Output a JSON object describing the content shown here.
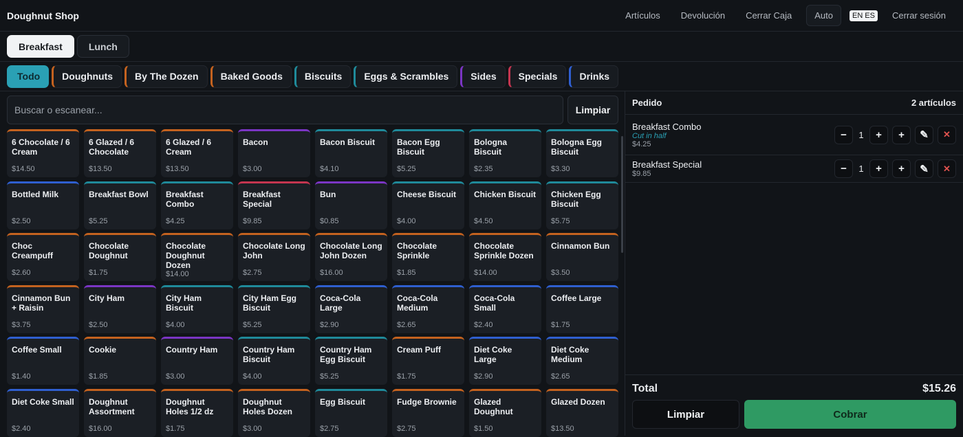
{
  "header": {
    "brand": "Doughnut Shop",
    "nav": [
      "Artículos",
      "Devolución",
      "Cerrar Caja"
    ],
    "auto": "Auto",
    "lang": [
      "EN",
      "ES"
    ],
    "logout": "Cerrar sesión"
  },
  "menus": [
    {
      "label": "Breakfast",
      "active": true
    },
    {
      "label": "Lunch",
      "active": false
    }
  ],
  "categories": [
    {
      "label": "Todo",
      "color": "#2aa0b4",
      "active": true
    },
    {
      "label": "Doughnuts",
      "color": "#c4621f",
      "active": false
    },
    {
      "label": "By The Dozen",
      "color": "#c4621f",
      "active": false
    },
    {
      "label": "Baked Goods",
      "color": "#c4621f",
      "active": false
    },
    {
      "label": "Biscuits",
      "color": "#1f8a9a",
      "active": false
    },
    {
      "label": "Eggs & Scrambles",
      "color": "#1f8a9a",
      "active": false
    },
    {
      "label": "Sides",
      "color": "#7b35c4",
      "active": false
    },
    {
      "label": "Specials",
      "color": "#c43550",
      "active": false
    },
    {
      "label": "Drinks",
      "color": "#2f5fd0",
      "active": false
    }
  ],
  "search": {
    "placeholder": "Buscar o escanear...",
    "clear_label": "Limpiar"
  },
  "products": [
    {
      "name": "6 Chocolate / 6 Cream",
      "price": "$14.50",
      "color": "#c4621f"
    },
    {
      "name": "6 Glazed / 6 Chocolate",
      "price": "$13.50",
      "color": "#c4621f"
    },
    {
      "name": "6 Glazed / 6 Cream",
      "price": "$13.50",
      "color": "#c4621f"
    },
    {
      "name": "Bacon",
      "price": "$3.00",
      "color": "#7b35c4"
    },
    {
      "name": "Bacon Biscuit",
      "price": "$4.10",
      "color": "#1f8a9a"
    },
    {
      "name": "Bacon Egg Biscuit",
      "price": "$5.25",
      "color": "#1f8a9a"
    },
    {
      "name": "Bologna Biscuit",
      "price": "$2.35",
      "color": "#1f8a9a"
    },
    {
      "name": "Bologna Egg Biscuit",
      "price": "$3.30",
      "color": "#1f8a9a"
    },
    {
      "name": "Bottled Milk",
      "price": "$2.50",
      "color": "#2f5fd0"
    },
    {
      "name": "Breakfast Bowl",
      "price": "$5.25",
      "color": "#1f8a9a"
    },
    {
      "name": "Breakfast Combo",
      "price": "$4.25",
      "color": "#1f8a9a"
    },
    {
      "name": "Breakfast Special",
      "price": "$9.85",
      "color": "#c43550"
    },
    {
      "name": "Bun",
      "price": "$0.85",
      "color": "#7b35c4"
    },
    {
      "name": "Cheese Biscuit",
      "price": "$4.00",
      "color": "#1f8a9a"
    },
    {
      "name": "Chicken Biscuit",
      "price": "$4.50",
      "color": "#1f8a9a"
    },
    {
      "name": "Chicken Egg Biscuit",
      "price": "$5.75",
      "color": "#1f8a9a"
    },
    {
      "name": "Choc Creampuff",
      "price": "$2.60",
      "color": "#c4621f"
    },
    {
      "name": "Chocolate Doughnut",
      "price": "$1.75",
      "color": "#c4621f"
    },
    {
      "name": "Chocolate Doughnut Dozen",
      "price": "$14.00",
      "color": "#c4621f"
    },
    {
      "name": "Chocolate Long John",
      "price": "$2.75",
      "color": "#c4621f"
    },
    {
      "name": "Chocolate Long John Dozen",
      "price": "$16.00",
      "color": "#c4621f"
    },
    {
      "name": "Chocolate Sprinkle",
      "price": "$1.85",
      "color": "#c4621f"
    },
    {
      "name": "Chocolate Sprinkle Dozen",
      "price": "$14.00",
      "color": "#c4621f"
    },
    {
      "name": "Cinnamon Bun",
      "price": "$3.50",
      "color": "#c4621f"
    },
    {
      "name": "Cinnamon Bun + Raisin",
      "price": "$3.75",
      "color": "#c4621f"
    },
    {
      "name": "City Ham",
      "price": "$2.50",
      "color": "#7b35c4"
    },
    {
      "name": "City Ham Biscuit",
      "price": "$4.00",
      "color": "#1f8a9a"
    },
    {
      "name": "City Ham Egg Biscuit",
      "price": "$5.25",
      "color": "#1f8a9a"
    },
    {
      "name": "Coca-Cola Large",
      "price": "$2.90",
      "color": "#2f5fd0"
    },
    {
      "name": "Coca-Cola Medium",
      "price": "$2.65",
      "color": "#2f5fd0"
    },
    {
      "name": "Coca-Cola Small",
      "price": "$2.40",
      "color": "#2f5fd0"
    },
    {
      "name": "Coffee Large",
      "price": "$1.75",
      "color": "#2f5fd0"
    },
    {
      "name": "Coffee Small",
      "price": "$1.40",
      "color": "#2f5fd0"
    },
    {
      "name": "Cookie",
      "price": "$1.85",
      "color": "#c4621f"
    },
    {
      "name": "Country Ham",
      "price": "$3.00",
      "color": "#7b35c4"
    },
    {
      "name": "Country Ham Biscuit",
      "price": "$4.00",
      "color": "#1f8a9a"
    },
    {
      "name": "Country Ham Egg Biscuit",
      "price": "$5.25",
      "color": "#1f8a9a"
    },
    {
      "name": "Cream Puff",
      "price": "$1.75",
      "color": "#c4621f"
    },
    {
      "name": "Diet Coke Large",
      "price": "$2.90",
      "color": "#2f5fd0"
    },
    {
      "name": "Diet Coke Medium",
      "price": "$2.65",
      "color": "#2f5fd0"
    },
    {
      "name": "Diet Coke Small",
      "price": "$2.40",
      "color": "#2f5fd0"
    },
    {
      "name": "Doughnut Assortment",
      "price": "$16.00",
      "color": "#c4621f"
    },
    {
      "name": "Doughnut Holes 1/2 dz",
      "price": "$1.75",
      "color": "#c4621f"
    },
    {
      "name": "Doughnut Holes Dozen",
      "price": "$3.00",
      "color": "#c4621f"
    },
    {
      "name": "Egg Biscuit",
      "price": "$2.75",
      "color": "#1f8a9a"
    },
    {
      "name": "Fudge Brownie",
      "price": "$2.75",
      "color": "#c4621f"
    },
    {
      "name": "Glazed Doughnut",
      "price": "$1.50",
      "color": "#c4621f"
    },
    {
      "name": "Glazed Dozen",
      "price": "$13.50",
      "color": "#c4621f"
    }
  ],
  "order": {
    "title": "Pedido",
    "count": "2 artículos",
    "lines": [
      {
        "name": "Breakfast Combo",
        "note": "Cut in half",
        "price": "$4.25",
        "qty": "1"
      },
      {
        "name": "Breakfast Special",
        "note": "",
        "price": "$9.85",
        "qty": "1"
      }
    ],
    "total_label": "Total",
    "total_value": "$15.26",
    "clear_label": "Limpiar",
    "pay_label": "Cobrar"
  }
}
